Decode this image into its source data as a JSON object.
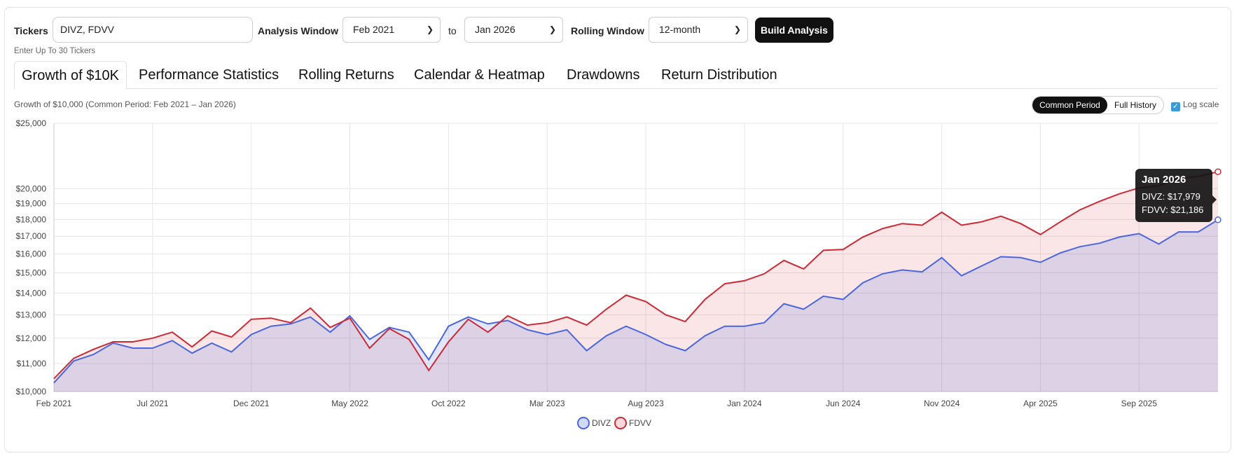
{
  "toolbar": {
    "tickers_label": "Tickers",
    "tickers_value": "DIVZ, FDVV",
    "tickers_hint": "Enter Up To 30 Tickers",
    "analysis_window_label": "Analysis Window",
    "start_value": "Feb 2021",
    "to_label": "to",
    "end_value": "Jan 2026",
    "rolling_window_label": "Rolling Window",
    "rolling_value": "12-month",
    "build_label": "Build Analysis"
  },
  "tabs": [
    {
      "label": "Growth of $10K",
      "active": true
    },
    {
      "label": "Performance Statistics",
      "active": false
    },
    {
      "label": "Rolling Returns",
      "active": false
    },
    {
      "label": "Calendar & Heatmap",
      "active": false
    },
    {
      "label": "Drawdowns",
      "active": false
    },
    {
      "label": "Return Distribution",
      "active": false
    }
  ],
  "panel": {
    "subtitle": "Growth of $10,000 (Common Period: Feb 2021 – Jan 2026)",
    "period_toggle": {
      "common": "Common Period",
      "full": "Full History",
      "selected": "Common Period"
    },
    "log_scale_label": "Log scale",
    "log_scale_checked": true
  },
  "tooltip": {
    "title": "Jan 2026",
    "rows": [
      "DIVZ: $17,979",
      "FDVV: $21,186"
    ]
  },
  "colors": {
    "divz": "#4a66e0",
    "fdvv": "#cc2a36",
    "accent": "#111111"
  },
  "chart_data": {
    "type": "area",
    "title": "",
    "scale": "log",
    "ylim": [
      10000,
      25000
    ],
    "y_ticks": [
      10000,
      11000,
      12000,
      13000,
      14000,
      15000,
      16000,
      17000,
      18000,
      19000,
      20000,
      25000
    ],
    "y_tick_labels": [
      "$10,000",
      "$11,000",
      "$12,000",
      "$13,000",
      "$14,000",
      "$15,000",
      "$16,000",
      "$17,000",
      "$18,000",
      "$19,000",
      "$20,000",
      "$25,000"
    ],
    "x_tick_labels": [
      "Feb 2021",
      "Jul 2021",
      "Dec 2021",
      "May 2022",
      "Oct 2022",
      "Mar 2023",
      "Aug 2023",
      "Jan 2024",
      "Jun 2024",
      "Nov 2024",
      "Apr 2025",
      "Sep 2025"
    ],
    "x_tick_index": [
      0,
      5,
      10,
      15,
      20,
      25,
      30,
      35,
      40,
      45,
      50,
      55
    ],
    "grid": true,
    "legend": "bottom-center",
    "months": [
      "Feb 2021",
      "Mar 2021",
      "Apr 2021",
      "May 2021",
      "Jun 2021",
      "Jul 2021",
      "Aug 2021",
      "Sep 2021",
      "Oct 2021",
      "Nov 2021",
      "Dec 2021",
      "Jan 2022",
      "Feb 2022",
      "Mar 2022",
      "Apr 2022",
      "May 2022",
      "Jun 2022",
      "Jul 2022",
      "Aug 2022",
      "Sep 2022",
      "Oct 2022",
      "Nov 2022",
      "Dec 2022",
      "Jan 2023",
      "Feb 2023",
      "Mar 2023",
      "Apr 2023",
      "May 2023",
      "Jun 2023",
      "Jul 2023",
      "Aug 2023",
      "Sep 2023",
      "Oct 2023",
      "Nov 2023",
      "Dec 2023",
      "Jan 2024",
      "Feb 2024",
      "Mar 2024",
      "Apr 2024",
      "May 2024",
      "Jun 2024",
      "Jul 2024",
      "Aug 2024",
      "Sep 2024",
      "Oct 2024",
      "Nov 2024",
      "Dec 2024",
      "Jan 2025",
      "Feb 2025",
      "Mar 2025",
      "Apr 2025",
      "May 2025",
      "Jun 2025",
      "Jul 2025",
      "Aug 2025",
      "Sep 2025",
      "Oct 2025",
      "Nov 2025",
      "Dec 2025",
      "Jan 2026"
    ],
    "series": [
      {
        "name": "DIVZ",
        "values": [
          10300,
          11100,
          11350,
          11800,
          11600,
          11600,
          11900,
          11400,
          11800,
          11450,
          12150,
          12500,
          12600,
          12900,
          12250,
          12950,
          11950,
          12450,
          12250,
          11150,
          12500,
          12900,
          12600,
          12750,
          12350,
          12150,
          12350,
          11500,
          12100,
          12500,
          12150,
          11750,
          11500,
          12100,
          12500,
          12500,
          12650,
          13500,
          13250,
          13850,
          13700,
          14500,
          14950,
          15150,
          15050,
          15800,
          14850,
          15350,
          15850,
          15800,
          15550,
          16050,
          16400,
          16600,
          16950,
          17150,
          16550,
          17250,
          17250,
          17979
        ]
      },
      {
        "name": "FDVV",
        "values": [
          10450,
          11200,
          11550,
          11850,
          11850,
          12000,
          12250,
          11650,
          12300,
          12050,
          12800,
          12850,
          12650,
          13300,
          12450,
          12850,
          11600,
          12400,
          11950,
          10750,
          11850,
          12800,
          12250,
          12950,
          12550,
          12650,
          12900,
          12550,
          13250,
          13900,
          13600,
          13000,
          12700,
          13700,
          14450,
          14600,
          14950,
          15650,
          15200,
          16200,
          16250,
          16950,
          17450,
          17750,
          17650,
          18450,
          17650,
          17850,
          18200,
          17750,
          17100,
          17850,
          18600,
          19150,
          19650,
          20050,
          20200,
          20700,
          20850,
          21186
        ]
      }
    ]
  }
}
